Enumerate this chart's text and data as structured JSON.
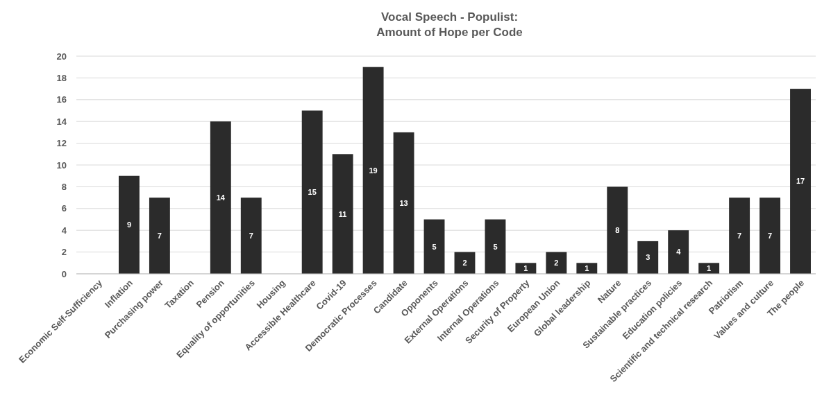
{
  "chart_data": {
    "type": "bar",
    "title": "Vocal Speech - Populist:\nAmount of Hope per Code",
    "categories": [
      "Economic Self-Sufficiency",
      "Inflation",
      "Purchasing power",
      "Taxation",
      "Pension",
      "Equality of opportunities",
      "Housing",
      "Accessible Healthcare",
      "Covid-19",
      "Democratic Processes",
      "Candidate",
      "Opponents",
      "External Operations",
      "Internal Operations",
      "Security of Property",
      "European Union",
      "Global leadership",
      "Nature",
      "Sustainable practices",
      "Education policies",
      "Scientific and technical research",
      "Patriotism",
      "Values and culture",
      "The people"
    ],
    "values": [
      0,
      9,
      7,
      0,
      14,
      7,
      0,
      15,
      11,
      19,
      13,
      5,
      2,
      5,
      1,
      2,
      1,
      8,
      3,
      4,
      1,
      7,
      7,
      17
    ],
    "value_labels": [
      null,
      "9",
      "7",
      null,
      "14",
      "7",
      null,
      "15",
      "11",
      "19",
      "13",
      "5",
      "2",
      "5",
      "1",
      "2",
      "1",
      "8",
      "3",
      "4",
      "1",
      "7",
      "7",
      "17"
    ],
    "color": "#2b2b2b",
    "ylim": [
      0,
      20
    ],
    "yticks": [
      0,
      2,
      4,
      6,
      8,
      10,
      12,
      14,
      16,
      18,
      20
    ],
    "grid": "y"
  }
}
